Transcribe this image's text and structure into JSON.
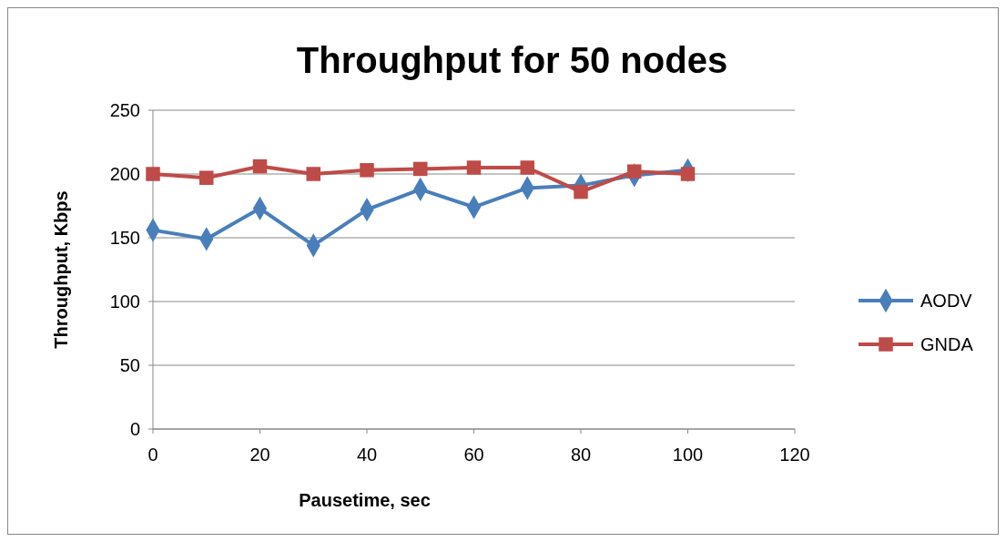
{
  "chart_data": {
    "type": "line",
    "title": "Throughput for 50 nodes",
    "xlabel": "Pausetime, sec",
    "ylabel": "Throughput, Kbps",
    "x": [
      0,
      10,
      20,
      30,
      40,
      50,
      60,
      70,
      80,
      90,
      100
    ],
    "series": [
      {
        "name": "AODV",
        "color": "#4a7ebb",
        "marker": "diamond",
        "values": [
          156,
          149,
          173,
          144,
          172,
          188,
          174,
          189,
          191,
          199,
          203
        ]
      },
      {
        "name": "GNDA",
        "color": "#be4b48",
        "marker": "square",
        "values": [
          200,
          197,
          206,
          200,
          203,
          204,
          205,
          205,
          186,
          202,
          200
        ]
      }
    ],
    "xlim": [
      0,
      120
    ],
    "xticks": [
      0,
      20,
      40,
      60,
      80,
      100,
      120
    ],
    "ylim": [
      0,
      250
    ],
    "yticks": [
      0,
      50,
      100,
      150,
      200,
      250
    ],
    "grid": "y",
    "legend": "right",
    "line_style": "solid"
  }
}
